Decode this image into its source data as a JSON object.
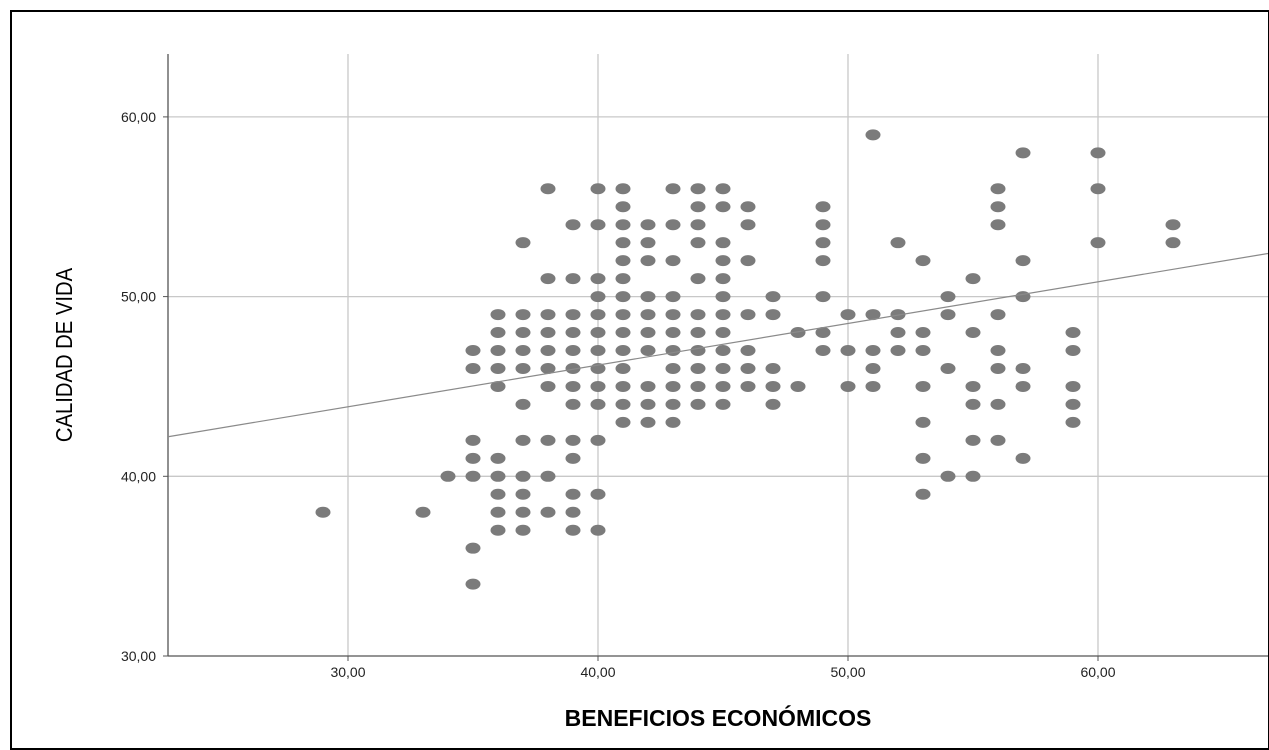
{
  "colors": {
    "point": "#7b7b7b",
    "grid": "#c8c8c8",
    "axis": "#555555",
    "fit_line": "#8a8a8a"
  },
  "chart_data": {
    "type": "scatter",
    "title": "",
    "xlabel": "BENEFICIOS ECONÓMICOS",
    "ylabel": "CALIDAD DE VIDA",
    "xlim": [
      22.8,
      66.8
    ],
    "ylim": [
      30,
      63.5
    ],
    "xticks": [
      30,
      40,
      50,
      60
    ],
    "yticks": [
      30,
      40,
      50,
      60
    ],
    "xtick_labels": [
      "30,00",
      "40,00",
      "50,00",
      "60,00"
    ],
    "ytick_labels": [
      "30,00",
      "40,00",
      "50,00",
      "60,00"
    ],
    "grid": true,
    "legend": "none",
    "fit_line": {
      "x1": 22.8,
      "y1": 42.2,
      "x2": 66.8,
      "y2": 52.4
    },
    "points": [
      [
        29,
        38
      ],
      [
        33,
        38
      ],
      [
        34,
        40
      ],
      [
        35,
        34
      ],
      [
        35,
        36
      ],
      [
        35,
        40
      ],
      [
        35,
        41
      ],
      [
        35,
        42
      ],
      [
        35,
        46
      ],
      [
        35,
        47
      ],
      [
        36,
        37
      ],
      [
        36,
        38
      ],
      [
        36,
        39
      ],
      [
        36,
        40
      ],
      [
        36,
        41
      ],
      [
        36,
        45
      ],
      [
        36,
        46
      ],
      [
        36,
        47
      ],
      [
        36,
        48
      ],
      [
        36,
        49
      ],
      [
        37,
        37
      ],
      [
        37,
        38
      ],
      [
        37,
        39
      ],
      [
        37,
        40
      ],
      [
        37,
        42
      ],
      [
        37,
        44
      ],
      [
        37,
        46
      ],
      [
        37,
        47
      ],
      [
        37,
        48
      ],
      [
        37,
        49
      ],
      [
        37,
        53
      ],
      [
        38,
        38
      ],
      [
        38,
        40
      ],
      [
        38,
        42
      ],
      [
        38,
        45
      ],
      [
        38,
        46
      ],
      [
        38,
        47
      ],
      [
        38,
        48
      ],
      [
        38,
        49
      ],
      [
        38,
        51
      ],
      [
        38,
        56
      ],
      [
        39,
        37
      ],
      [
        39,
        38
      ],
      [
        39,
        39
      ],
      [
        39,
        41
      ],
      [
        39,
        42
      ],
      [
        39,
        44
      ],
      [
        39,
        45
      ],
      [
        39,
        46
      ],
      [
        39,
        47
      ],
      [
        39,
        48
      ],
      [
        39,
        49
      ],
      [
        39,
        51
      ],
      [
        39,
        54
      ],
      [
        40,
        37
      ],
      [
        40,
        39
      ],
      [
        40,
        42
      ],
      [
        40,
        44
      ],
      [
        40,
        45
      ],
      [
        40,
        46
      ],
      [
        40,
        47
      ],
      [
        40,
        48
      ],
      [
        40,
        49
      ],
      [
        40,
        50
      ],
      [
        40,
        51
      ],
      [
        40,
        54
      ],
      [
        40,
        56
      ],
      [
        41,
        43
      ],
      [
        41,
        44
      ],
      [
        41,
        45
      ],
      [
        41,
        46
      ],
      [
        41,
        47
      ],
      [
        41,
        48
      ],
      [
        41,
        49
      ],
      [
        41,
        50
      ],
      [
        41,
        51
      ],
      [
        41,
        52
      ],
      [
        41,
        53
      ],
      [
        41,
        54
      ],
      [
        41,
        55
      ],
      [
        41,
        56
      ],
      [
        42,
        43
      ],
      [
        42,
        44
      ],
      [
        42,
        45
      ],
      [
        42,
        47
      ],
      [
        42,
        48
      ],
      [
        42,
        49
      ],
      [
        42,
        50
      ],
      [
        42,
        52
      ],
      [
        42,
        53
      ],
      [
        42,
        54
      ],
      [
        43,
        43
      ],
      [
        43,
        44
      ],
      [
        43,
        45
      ],
      [
        43,
        46
      ],
      [
        43,
        47
      ],
      [
        43,
        48
      ],
      [
        43,
        49
      ],
      [
        43,
        50
      ],
      [
        43,
        52
      ],
      [
        43,
        54
      ],
      [
        43,
        56
      ],
      [
        44,
        44
      ],
      [
        44,
        45
      ],
      [
        44,
        46
      ],
      [
        44,
        47
      ],
      [
        44,
        48
      ],
      [
        44,
        49
      ],
      [
        44,
        51
      ],
      [
        44,
        53
      ],
      [
        44,
        54
      ],
      [
        44,
        55
      ],
      [
        44,
        56
      ],
      [
        45,
        44
      ],
      [
        45,
        45
      ],
      [
        45,
        46
      ],
      [
        45,
        47
      ],
      [
        45,
        48
      ],
      [
        45,
        49
      ],
      [
        45,
        50
      ],
      [
        45,
        51
      ],
      [
        45,
        52
      ],
      [
        45,
        53
      ],
      [
        45,
        55
      ],
      [
        45,
        56
      ],
      [
        46,
        45
      ],
      [
        46,
        46
      ],
      [
        46,
        47
      ],
      [
        46,
        49
      ],
      [
        46,
        52
      ],
      [
        46,
        54
      ],
      [
        46,
        55
      ],
      [
        47,
        44
      ],
      [
        47,
        45
      ],
      [
        47,
        46
      ],
      [
        47,
        49
      ],
      [
        47,
        50
      ],
      [
        48,
        45
      ],
      [
        48,
        48
      ],
      [
        49,
        47
      ],
      [
        49,
        48
      ],
      [
        49,
        50
      ],
      [
        49,
        52
      ],
      [
        49,
        53
      ],
      [
        49,
        54
      ],
      [
        49,
        55
      ],
      [
        50,
        45
      ],
      [
        50,
        47
      ],
      [
        50,
        49
      ],
      [
        51,
        45
      ],
      [
        51,
        46
      ],
      [
        51,
        47
      ],
      [
        51,
        49
      ],
      [
        51,
        59
      ],
      [
        52,
        47
      ],
      [
        52,
        48
      ],
      [
        52,
        49
      ],
      [
        52,
        53
      ],
      [
        53,
        39
      ],
      [
        53,
        41
      ],
      [
        53,
        43
      ],
      [
        53,
        45
      ],
      [
        53,
        47
      ],
      [
        53,
        48
      ],
      [
        53,
        52
      ],
      [
        54,
        40
      ],
      [
        54,
        46
      ],
      [
        54,
        49
      ],
      [
        54,
        50
      ],
      [
        55,
        40
      ],
      [
        55,
        42
      ],
      [
        55,
        44
      ],
      [
        55,
        45
      ],
      [
        55,
        48
      ],
      [
        55,
        51
      ],
      [
        56,
        42
      ],
      [
        56,
        44
      ],
      [
        56,
        46
      ],
      [
        56,
        47
      ],
      [
        56,
        49
      ],
      [
        56,
        54
      ],
      [
        56,
        55
      ],
      [
        56,
        56
      ],
      [
        57,
        41
      ],
      [
        57,
        45
      ],
      [
        57,
        46
      ],
      [
        57,
        50
      ],
      [
        57,
        52
      ],
      [
        57,
        58
      ],
      [
        59,
        43
      ],
      [
        59,
        44
      ],
      [
        59,
        45
      ],
      [
        59,
        47
      ],
      [
        59,
        48
      ],
      [
        60,
        53
      ],
      [
        60,
        56
      ],
      [
        60,
        58
      ],
      [
        63,
        53
      ],
      [
        63,
        54
      ]
    ]
  }
}
